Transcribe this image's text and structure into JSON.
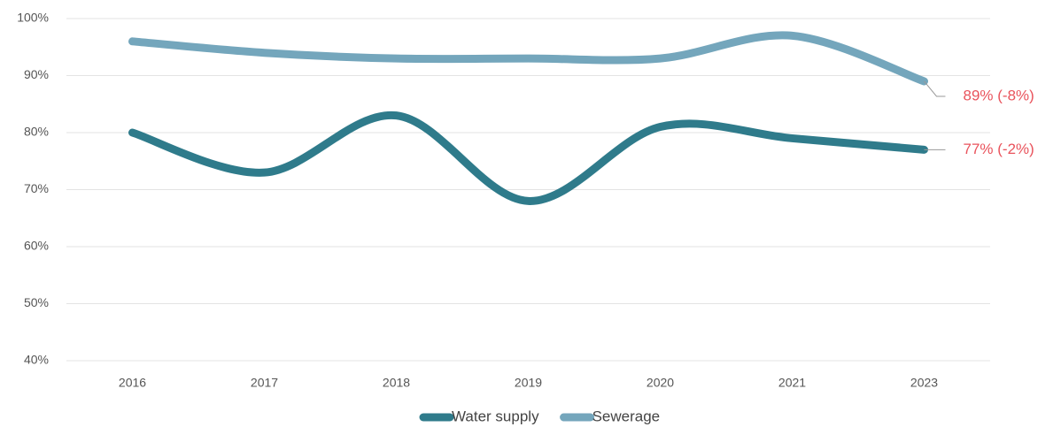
{
  "chart_data": {
    "type": "line",
    "categories": [
      "2016",
      "2017",
      "2018",
      "2019",
      "2020",
      "2021",
      "2023"
    ],
    "series": [
      {
        "name": "Water supply",
        "color": "#2f7b8b",
        "values": [
          80,
          73,
          83,
          68,
          81,
          79,
          77
        ],
        "end_label": "77% (-2%)"
      },
      {
        "name": "Sewerage",
        "color": "#74a6bc",
        "values": [
          96,
          94,
          93,
          93,
          93,
          97,
          89
        ],
        "end_label": "89% (-8%)"
      }
    ],
    "annotation_color": "#e9535c",
    "ylim": [
      40,
      100
    ],
    "yticks": [
      {
        "value": 40,
        "label": "40%"
      },
      {
        "value": 50,
        "label": "50%"
      },
      {
        "value": 60,
        "label": "60%"
      },
      {
        "value": 70,
        "label": "70%"
      },
      {
        "value": 80,
        "label": "80%"
      },
      {
        "value": 90,
        "label": "90%"
      },
      {
        "value": 100,
        "label": "100%"
      }
    ],
    "grid": true,
    "smooth": true,
    "legend": "bottom"
  }
}
